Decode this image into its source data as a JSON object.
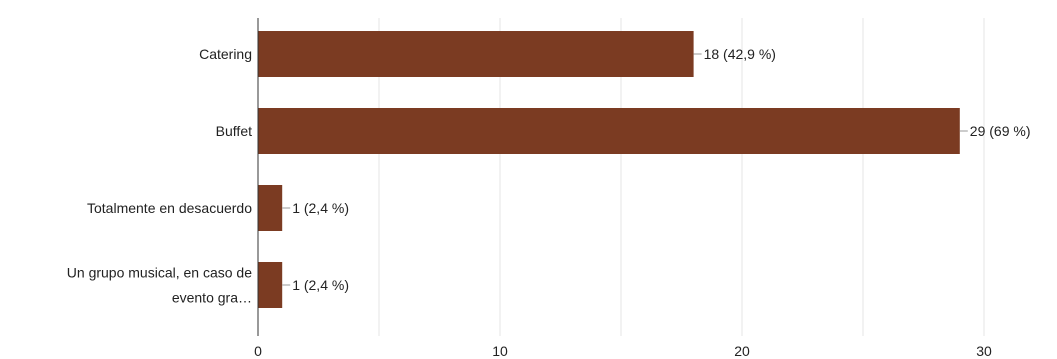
{
  "chart_data": {
    "type": "bar",
    "orientation": "horizontal",
    "title": "",
    "xlabel": "",
    "ylabel": "",
    "categories": [
      [
        "Catering"
      ],
      [
        "Buffet"
      ],
      [
        "Totalmente en desacuerdo"
      ],
      [
        "Un grupo musical, en caso de",
        "evento gra…"
      ]
    ],
    "values": [
      18,
      29,
      1,
      1
    ],
    "data_labels": [
      "18 (42,9 %)",
      "29 (69 %)",
      "1 (2,4 %)",
      "1 (2,4 %)"
    ],
    "xlim": [
      0,
      30
    ],
    "xticks": [
      "0",
      "10",
      "20",
      "30"
    ],
    "grid": true,
    "legend": "none",
    "bar_color": "#7b3b22",
    "grid_color": "#e6e6e6",
    "axis_color": "#333333",
    "text_color": "#222222"
  }
}
